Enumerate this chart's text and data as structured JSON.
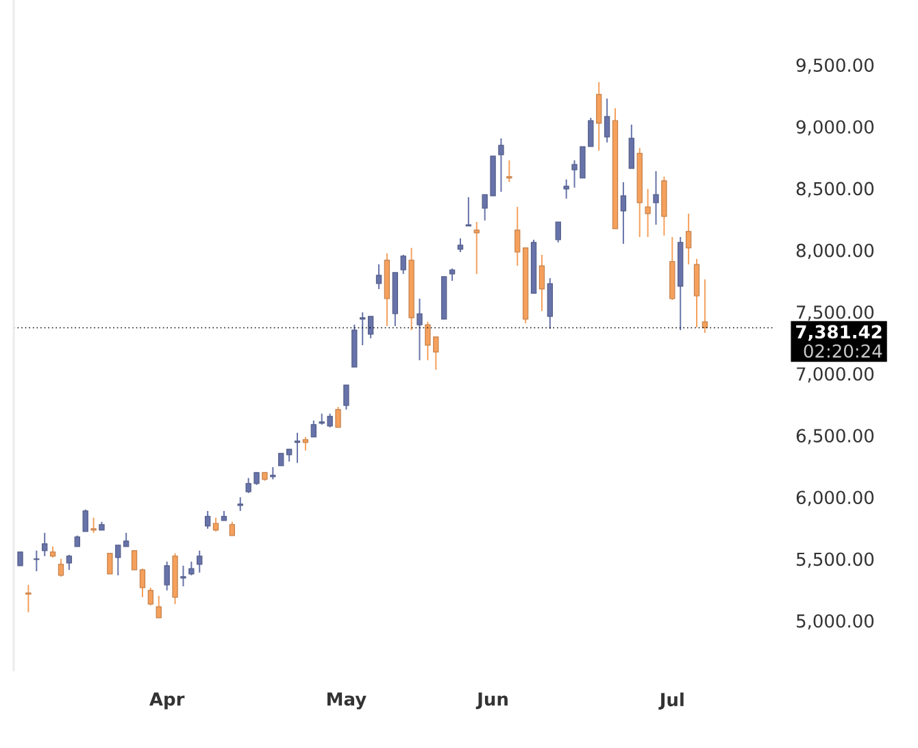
{
  "chart_data": {
    "type": "candlestick",
    "categories": [
      null,
      null,
      null,
      null,
      null,
      null,
      null,
      null,
      null,
      null,
      null,
      null,
      null,
      null,
      null,
      null,
      null,
      null,
      "Apr",
      null,
      null,
      null,
      null,
      null,
      null,
      null,
      null,
      null,
      null,
      null,
      null,
      null,
      null,
      null,
      null,
      null,
      null,
      null,
      null,
      null,
      "May",
      null,
      null,
      null,
      null,
      null,
      null,
      null,
      null,
      null,
      null,
      null,
      null,
      null,
      null,
      null,
      null,
      null,
      "Jun",
      null,
      null,
      null,
      null,
      null,
      null,
      null,
      null,
      null,
      null,
      null,
      null,
      null,
      null,
      null,
      null,
      null,
      null,
      null,
      null,
      null,
      "Jul",
      null,
      null,
      null,
      null
    ],
    "ohlc": [
      [
        5455,
        5566,
        5455,
        5566
      ],
      [
        5235,
        5300,
        5078,
        5225
      ],
      [
        5505,
        5577,
        5410,
        5510
      ],
      [
        5577,
        5721,
        5532,
        5632
      ],
      [
        5566,
        5610,
        5521,
        5532
      ],
      [
        5466,
        5510,
        5366,
        5377
      ],
      [
        5477,
        5543,
        5421,
        5532
      ],
      [
        5610,
        5699,
        5610,
        5688
      ],
      [
        5732,
        5910,
        5732,
        5898
      ],
      [
        5754,
        5843,
        5720,
        5743
      ],
      [
        5743,
        5810,
        5743,
        5787
      ],
      [
        5555,
        5555,
        5388,
        5388
      ],
      [
        5521,
        5621,
        5377,
        5621
      ],
      [
        5610,
        5721,
        5610,
        5654
      ],
      [
        5577,
        5577,
        5421,
        5421
      ],
      [
        5421,
        5432,
        5200,
        5277
      ],
      [
        5255,
        5277,
        5133,
        5144
      ],
      [
        5122,
        5211,
        5033,
        5033
      ],
      [
        5300,
        5488,
        5255,
        5455
      ],
      [
        5532,
        5555,
        5144,
        5200
      ],
      [
        5355,
        5455,
        5288,
        5366
      ],
      [
        5388,
        5488,
        5377,
        5432
      ],
      [
        5466,
        5577,
        5399,
        5532
      ],
      [
        5776,
        5898,
        5754,
        5854
      ],
      [
        5798,
        5843,
        5732,
        5743
      ],
      [
        5821,
        5898,
        5821,
        5854
      ],
      [
        5787,
        5810,
        5699,
        5699
      ],
      [
        5943,
        6009,
        5898,
        5954
      ],
      [
        6054,
        6165,
        6043,
        6120
      ],
      [
        6120,
        6209,
        6109,
        6209
      ],
      [
        6209,
        6209,
        6143,
        6154
      ],
      [
        6176,
        6253,
        6154,
        6187
      ],
      [
        6264,
        6364,
        6264,
        6364
      ],
      [
        6353,
        6398,
        6298,
        6398
      ],
      [
        6453,
        6531,
        6287,
        6464
      ],
      [
        6475,
        6497,
        6387,
        6453
      ],
      [
        6497,
        6630,
        6497,
        6597
      ],
      [
        6608,
        6686,
        6597,
        6619
      ],
      [
        6586,
        6686,
        6575,
        6664
      ],
      [
        6719,
        6741,
        6575,
        6575
      ],
      [
        6752,
        6918,
        6719,
        6918
      ],
      [
        7063,
        7407,
        7063,
        7362
      ],
      [
        7451,
        7506,
        7240,
        7462
      ],
      [
        7329,
        7473,
        7296,
        7473
      ],
      [
        7739,
        7894,
        7695,
        7806
      ],
      [
        7928,
        7983,
        7395,
        7617
      ],
      [
        7495,
        7828,
        7395,
        7828
      ],
      [
        7850,
        7972,
        7817,
        7961
      ],
      [
        7928,
        8028,
        7362,
        7462
      ],
      [
        7406,
        7617,
        7118,
        7495
      ],
      [
        7406,
        7429,
        7118,
        7240
      ],
      [
        7307,
        7307,
        7041,
        7185
      ],
      [
        7451,
        7795,
        7451,
        7795
      ],
      [
        7817,
        7861,
        7761,
        7850
      ],
      [
        8017,
        8105,
        7994,
        8050
      ],
      [
        8205,
        8438,
        8205,
        8216
      ],
      [
        8172,
        8238,
        7817,
        8150
      ],
      [
        8349,
        8460,
        8250,
        8460
      ],
      [
        8449,
        8771,
        8449,
        8771
      ],
      [
        8782,
        8915,
        8482,
        8859
      ],
      [
        8605,
        8737,
        8560,
        8594
      ],
      [
        8172,
        8360,
        7883,
        7994
      ],
      [
        8028,
        8028,
        7418,
        7451
      ],
      [
        7661,
        8094,
        7661,
        8072
      ],
      [
        7883,
        7972,
        7517,
        7695
      ],
      [
        7473,
        7783,
        7373,
        7739
      ],
      [
        8094,
        8238,
        8072,
        8238
      ],
      [
        8505,
        8582,
        8427,
        8527
      ],
      [
        8660,
        8737,
        8516,
        8704
      ],
      [
        8593,
        8848,
        8593,
        8848
      ],
      [
        8848,
        9081,
        8848,
        9059
      ],
      [
        9270,
        9370,
        8815,
        9037
      ],
      [
        8926,
        9237,
        8882,
        9092
      ],
      [
        9059,
        9159,
        8183,
        8183
      ],
      [
        8327,
        8560,
        8061,
        8449
      ],
      [
        8671,
        9026,
        8671,
        8915
      ],
      [
        8793,
        8837,
        8116,
        8394
      ],
      [
        8360,
        8505,
        8116,
        8305
      ],
      [
        8394,
        8649,
        8216,
        8460
      ],
      [
        8571,
        8605,
        8127,
        8283
      ],
      [
        7917,
        8116,
        7606,
        7617
      ],
      [
        7717,
        8116,
        7362,
        8072
      ],
      [
        8161,
        8305,
        7894,
        8028
      ],
      [
        7894,
        7939,
        7384,
        7639
      ],
      [
        7429,
        7773,
        7340,
        7381.42
      ]
    ],
    "colors": [
      "#6773a9",
      "#f5a05c",
      "#6773a9",
      "#6773a9",
      "#f5a05c",
      "#f5a05c",
      "#6773a9",
      "#6773a9",
      "#6773a9",
      "#f5a05c",
      "#6773a9",
      "#f5a05c",
      "#6773a9",
      "#6773a9",
      "#f5a05c",
      "#f5a05c",
      "#f5a05c",
      "#f5a05c",
      "#6773a9",
      "#f5a05c",
      "#6773a9",
      "#6773a9",
      "#6773a9",
      "#6773a9",
      "#f5a05c",
      "#6773a9",
      "#f5a05c",
      "#6773a9",
      "#6773a9",
      "#6773a9",
      "#f5a05c",
      "#6773a9",
      "#6773a9",
      "#6773a9",
      "#6773a9",
      "#f5a05c",
      "#6773a9",
      "#6773a9",
      "#6773a9",
      "#f5a05c",
      "#6773a9",
      "#6773a9",
      "#6773a9",
      "#6773a9",
      "#6773a9",
      "#f5a05c",
      "#6773a9",
      "#6773a9",
      "#f5a05c",
      "#6773a9",
      "#f5a05c",
      "#f5a05c",
      "#6773a9",
      "#6773a9",
      "#6773a9",
      "#6773a9",
      "#f5a05c",
      "#6773a9",
      "#6773a9",
      "#6773a9",
      "#f5a05c",
      "#f5a05c",
      "#f5a05c",
      "#6773a9",
      "#f5a05c",
      "#6773a9",
      "#6773a9",
      "#6773a9",
      "#6773a9",
      "#6773a9",
      "#6773a9",
      "#f5a05c",
      "#6773a9",
      "#f5a05c",
      "#6773a9",
      "#6773a9",
      "#f5a05c",
      "#f5a05c",
      "#6773a9",
      "#f5a05c",
      "#f5a05c",
      "#6773a9",
      "#f5a05c",
      "#f5a05c",
      "#f5a05c"
    ],
    "ylim": [
      4600,
      10035
    ],
    "yticks": [
      {
        "value": 5000,
        "label": "5,000.00"
      },
      {
        "value": 5500,
        "label": "5,500.00"
      },
      {
        "value": 6000,
        "label": "6,000.00"
      },
      {
        "value": 6500,
        "label": "6,500.00"
      },
      {
        "value": 7000,
        "label": "7,000.00"
      },
      {
        "value": 7500,
        "label": "7,500.00"
      },
      {
        "value": 8000,
        "label": "8,000.00"
      },
      {
        "value": 8500,
        "label": "8,500.00"
      },
      {
        "value": 9000,
        "label": "9,000.00"
      },
      {
        "value": 9500,
        "label": "9,500.00"
      }
    ],
    "ref_lines": [
      {
        "axis": "y",
        "value": 7381.42,
        "label": "7,381.42",
        "color": "#000000",
        "line_style": "dotted"
      }
    ],
    "annotations": [
      "02:20:24"
    ],
    "grid": false
  }
}
